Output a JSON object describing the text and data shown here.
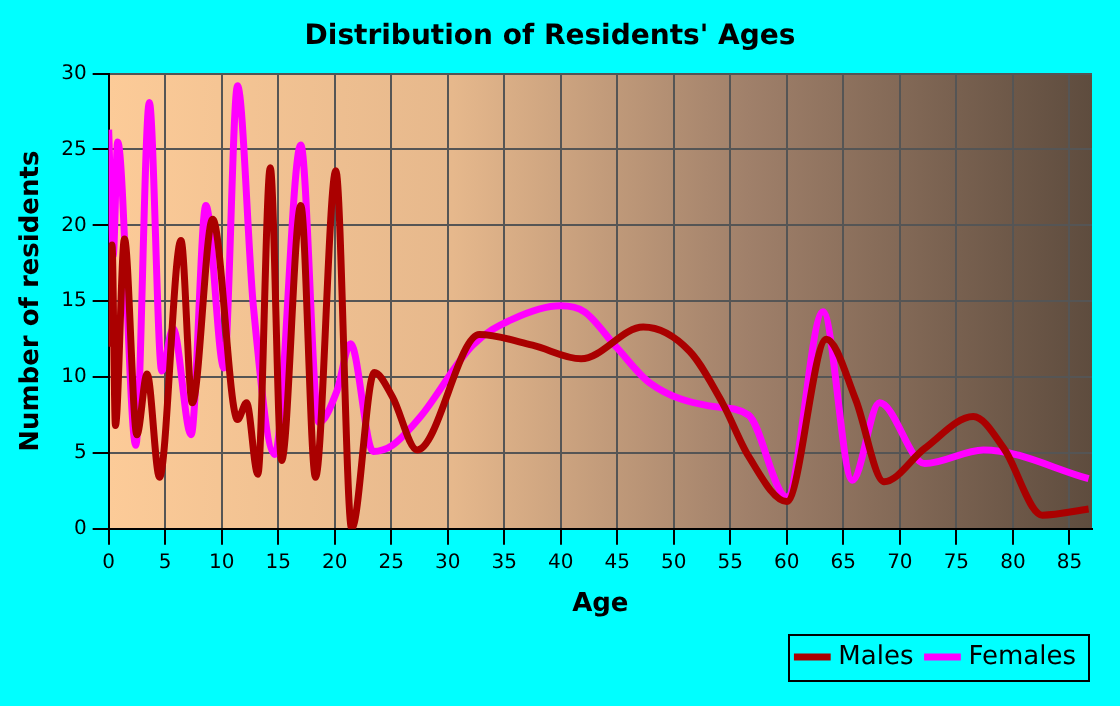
{
  "chart_data": {
    "type": "line",
    "title": "Distribution of Residents' Ages",
    "xlabel": "Age",
    "ylabel": "Number of residents",
    "xlim": [
      0,
      87
    ],
    "xticks": [
      0,
      5,
      10,
      15,
      20,
      25,
      30,
      35,
      40,
      45,
      50,
      55,
      60,
      65,
      70,
      75,
      80,
      85
    ],
    "ylim": [
      0,
      30
    ],
    "yticks": [
      0,
      5,
      10,
      15,
      20,
      25,
      30
    ],
    "grid": true,
    "legend": "bottom right",
    "marker": "none",
    "series": [
      {
        "name": "Males",
        "color": "#aa0000",
        "x": [
          0,
          0.3,
          0.6,
          1.4,
          2.5,
          3.4,
          4.5,
          6.4,
          7.4,
          9.2,
          11.4,
          12.2,
          13.2,
          14.3,
          15.3,
          17.0,
          18.3,
          20.1,
          21.5,
          23.5,
          25.1,
          27.3,
          32.8,
          37.5,
          41.8,
          47.3,
          51.4,
          54.3,
          56.6,
          60.0,
          63.5,
          66.1,
          68.6,
          72.2,
          76.5,
          79.2,
          82.6,
          86.7
        ],
        "values": [
          12,
          18.7,
          6.8,
          19.1,
          6.2,
          10.2,
          3.4,
          19.0,
          8.3,
          20.4,
          7.2,
          8.3,
          3.6,
          23.8,
          4.5,
          21.3,
          3.4,
          23.6,
          0,
          10.3,
          8.7,
          5.2,
          12.8,
          12.1,
          11.2,
          13.3,
          11.7,
          8.3,
          4.8,
          1.8,
          12.5,
          8.5,
          3.1,
          5.3,
          7.4,
          5.3,
          0.9,
          1.3
        ]
      },
      {
        "name": "Females",
        "color": "#ff00ff",
        "x": [
          0,
          0.4,
          0.8,
          2.4,
          3.6,
          4.7,
          5.7,
          7.3,
          8.6,
          10.2,
          11.4,
          12.8,
          14.7,
          17.0,
          18.6,
          20.2,
          21.4,
          23.4,
          25.1,
          27.6,
          32.2,
          35.7,
          40.0,
          42.1,
          45.0,
          47.9,
          53.1,
          56.6,
          60.0,
          63.2,
          65.8,
          68.2,
          72.2,
          77.4,
          86.7
        ],
        "values": [
          26.3,
          18,
          25.5,
          5.5,
          28.1,
          10.4,
          13.2,
          6.2,
          21.3,
          10.6,
          29.2,
          14.7,
          4.9,
          25.3,
          7.0,
          9.1,
          12.2,
          5.1,
          5.5,
          7.4,
          12.1,
          13.8,
          14.7,
          14.3,
          11.9,
          9.6,
          8.1,
          7.5,
          2.1,
          14.3,
          3.2,
          8.3,
          4.3,
          5.2,
          3.3
        ]
      }
    ]
  }
}
